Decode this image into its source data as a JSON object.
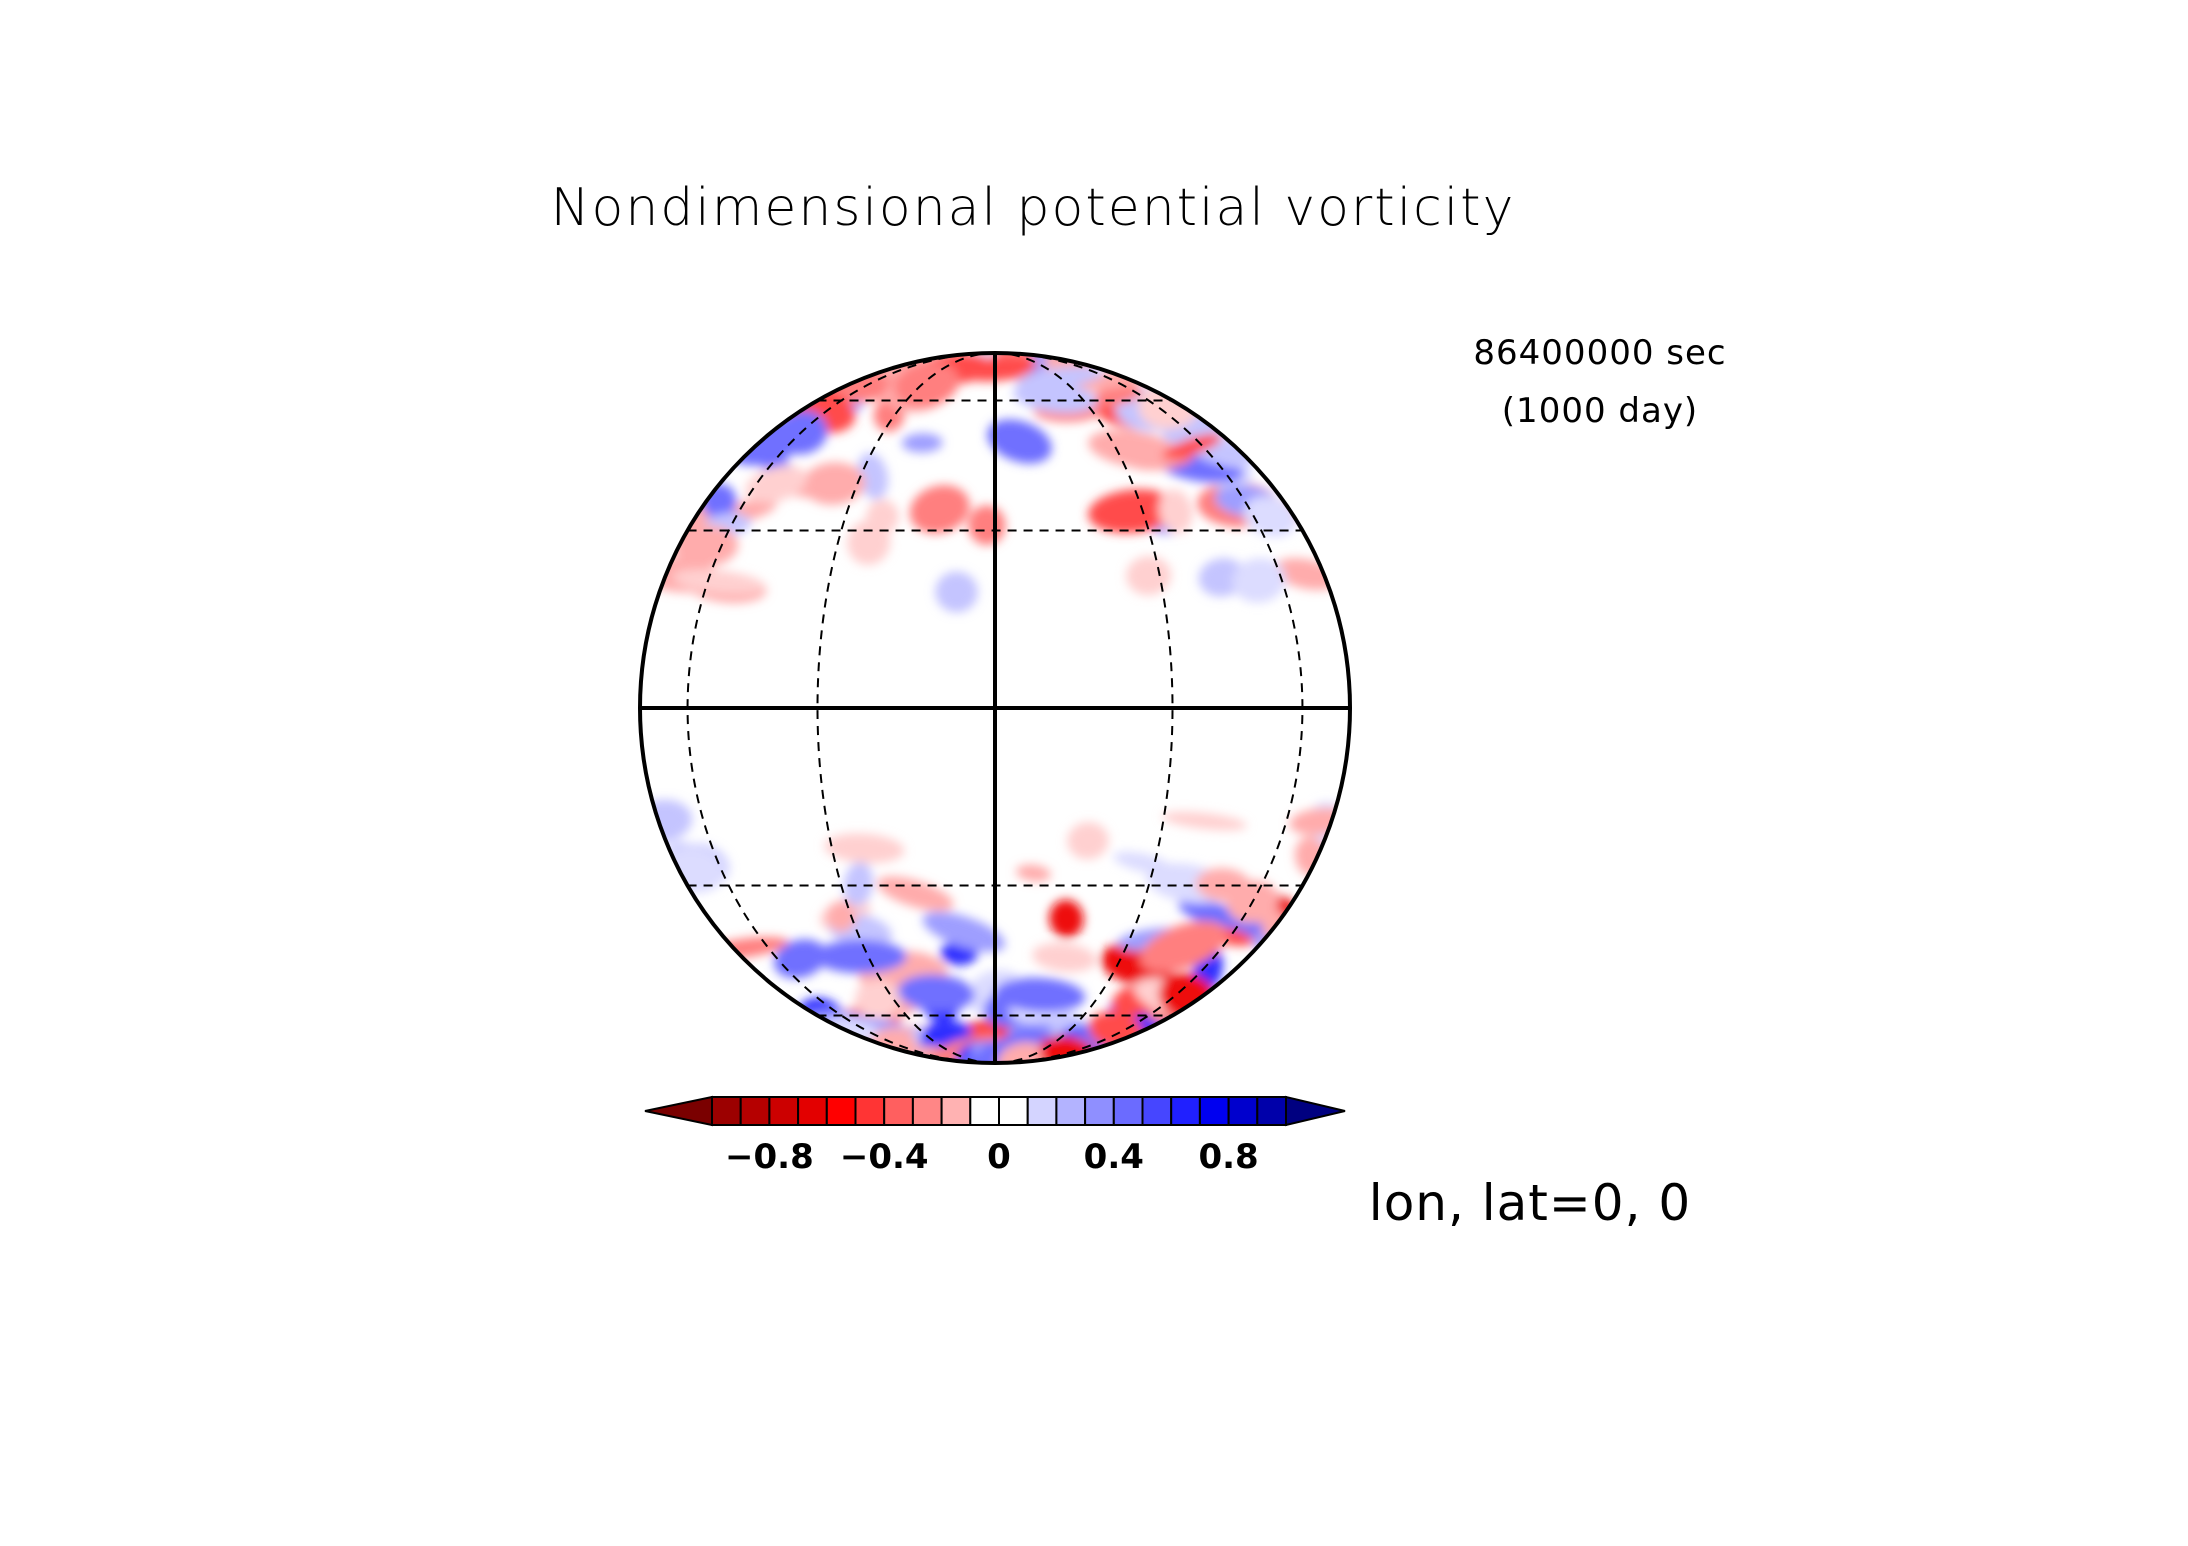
{
  "title": "Nondimensional potential vorticity",
  "time_seconds": "86400000 sec",
  "time_days": "(1000 day)",
  "view_label": "lon, lat=0, 0",
  "colorbar": {
    "tick_labels": [
      "−0.8",
      "−0.4",
      "0",
      "0.4",
      "0.8"
    ],
    "tick_values": [
      -0.8,
      -0.4,
      0,
      0.4,
      0.8
    ],
    "range": [
      -1,
      1
    ],
    "step": 0.1,
    "extend": "both",
    "colors": [
      "#7a0000",
      "#9c0000",
      "#b50000",
      "#cc0000",
      "#e30000",
      "#ff0000",
      "#ff3434",
      "#ff5f5f",
      "#ff8686",
      "#ffb2b2",
      "#ffffff",
      "#ffffff",
      "#d4d4ff",
      "#b3b3ff",
      "#8f8fff",
      "#6b6bff",
      "#4646ff",
      "#2020ff",
      "#0000f0",
      "#0000cd",
      "#0000aa",
      "#000080"
    ]
  },
  "projection": {
    "type": "orthographic",
    "center_lon": 0,
    "center_lat": 0,
    "parallels": [
      -60,
      -30,
      0,
      30,
      60
    ],
    "meridians": [
      -60,
      -30,
      0,
      30,
      60
    ],
    "colors": {
      "negative": "#ff4040",
      "positive": "#4040ff"
    }
  }
}
